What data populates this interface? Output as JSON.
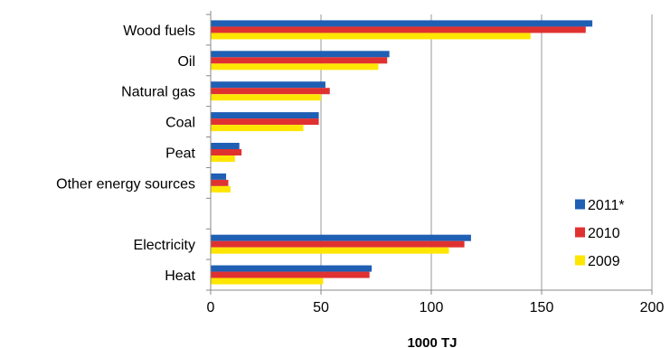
{
  "chart_data": {
    "type": "bar",
    "orientation": "horizontal",
    "categories": [
      "Wood fuels",
      "Oil",
      "Natural gas",
      "Coal",
      "Peat",
      "Other energy sources",
      "",
      "Electricity",
      "Heat"
    ],
    "series": [
      {
        "name": "2011*",
        "color": "#1f5fb4",
        "values": [
          173,
          81,
          52,
          49,
          13,
          7,
          null,
          118,
          73
        ]
      },
      {
        "name": "2010",
        "color": "#e03131",
        "values": [
          170,
          80,
          54,
          49,
          14,
          8,
          null,
          115,
          72
        ]
      },
      {
        "name": "2009",
        "color": "#ffe600",
        "values": [
          145,
          76,
          50,
          42,
          11,
          9,
          null,
          108,
          51
        ]
      }
    ],
    "xlabel": "1000 TJ",
    "xlim": [
      0,
      200
    ],
    "xticks": [
      "0",
      "50",
      "100",
      "150",
      "200"
    ],
    "grid": "vertical",
    "legend_position": "bottom-right"
  }
}
